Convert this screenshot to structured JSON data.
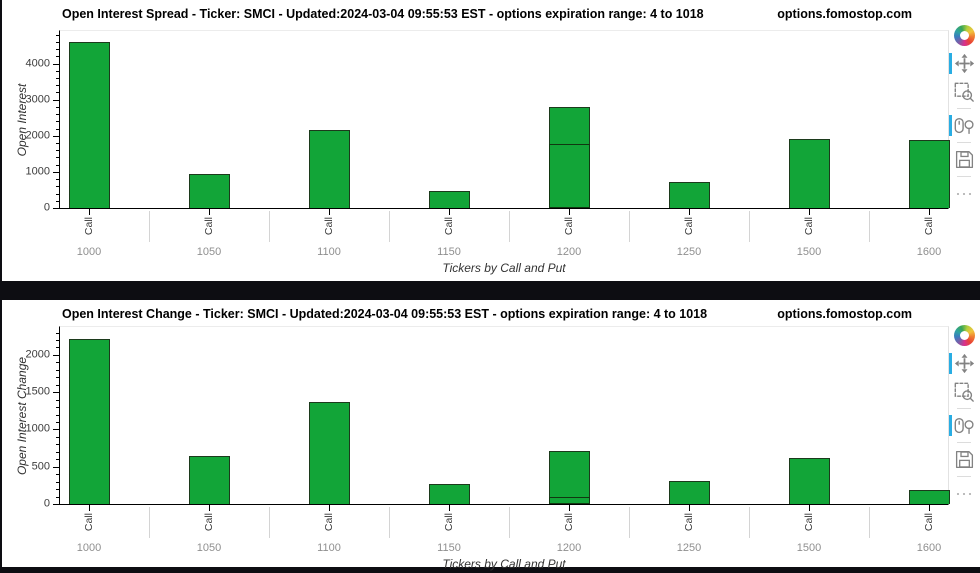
{
  "page": {
    "background": "#0d0d12",
    "active_tool_color": "#29ade3"
  },
  "chart_data": [
    {
      "type": "bar",
      "title": "Open Interest Spread - Ticker: SMCI - Updated:2024-03-04 09:55:53 EST - options expiration range: 4 to 1018",
      "watermark": "options.fomostop.com",
      "categories": [
        "1000",
        "1050",
        "1100",
        "1150",
        "1200",
        "1250",
        "1500",
        "1600"
      ],
      "subgroup_tick_label": "Call",
      "series": [
        {
          "name": "Call",
          "values": [
            4600,
            940,
            2160,
            470,
            2800,
            720,
            1920,
            1880
          ]
        },
        {
          "name": "Call-overlay",
          "values": [
            null,
            null,
            null,
            null,
            1770,
            null,
            null,
            null
          ]
        }
      ],
      "xlabel": "Tickers by Call and Put",
      "ylabel": "Open Interest",
      "ylim": [
        0,
        4900
      ],
      "yticks": [
        0,
        1000,
        2000,
        3000,
        4000
      ],
      "y_minor_step": 200,
      "bar_color": "#12a538",
      "grid": false,
      "legend": "none",
      "toolbar": {
        "icons": [
          {
            "name": "bokeh-logo",
            "active": false
          },
          {
            "name": "pan-tool",
            "active": true
          },
          {
            "name": "box-zoom-tool",
            "active": false
          },
          {
            "name": "wheel-zoom-tool",
            "active": true
          },
          {
            "name": "save-tool",
            "active": false
          },
          {
            "name": "more-tools",
            "active": false
          }
        ]
      }
    },
    {
      "type": "bar",
      "title": "Open Interest Change - Ticker: SMCI - Updated:2024-03-04 09:55:53 EST - options expiration range: 4 to 1018",
      "watermark": "options.fomostop.com",
      "categories": [
        "1000",
        "1050",
        "1100",
        "1150",
        "1200",
        "1250",
        "1500",
        "1600"
      ],
      "subgroup_tick_label": "Call",
      "series": [
        {
          "name": "Call",
          "values": [
            2210,
            650,
            1370,
            270,
            710,
            310,
            620,
            190
          ]
        },
        {
          "name": "Call-overlay",
          "values": [
            null,
            null,
            null,
            null,
            100,
            null,
            null,
            null
          ]
        }
      ],
      "xlabel": "Tickers by Call and Put",
      "ylabel": "Open Interest Change",
      "ylim": [
        0,
        2375
      ],
      "yticks": [
        0,
        500,
        1000,
        1500,
        2000
      ],
      "y_minor_step": 100,
      "bar_color": "#12a538",
      "grid": false,
      "legend": "none",
      "toolbar": {
        "icons": [
          {
            "name": "bokeh-logo",
            "active": false
          },
          {
            "name": "pan-tool",
            "active": true
          },
          {
            "name": "box-zoom-tool",
            "active": false
          },
          {
            "name": "wheel-zoom-tool",
            "active": true
          },
          {
            "name": "save-tool",
            "active": false
          },
          {
            "name": "more-tools",
            "active": false
          }
        ]
      }
    }
  ]
}
